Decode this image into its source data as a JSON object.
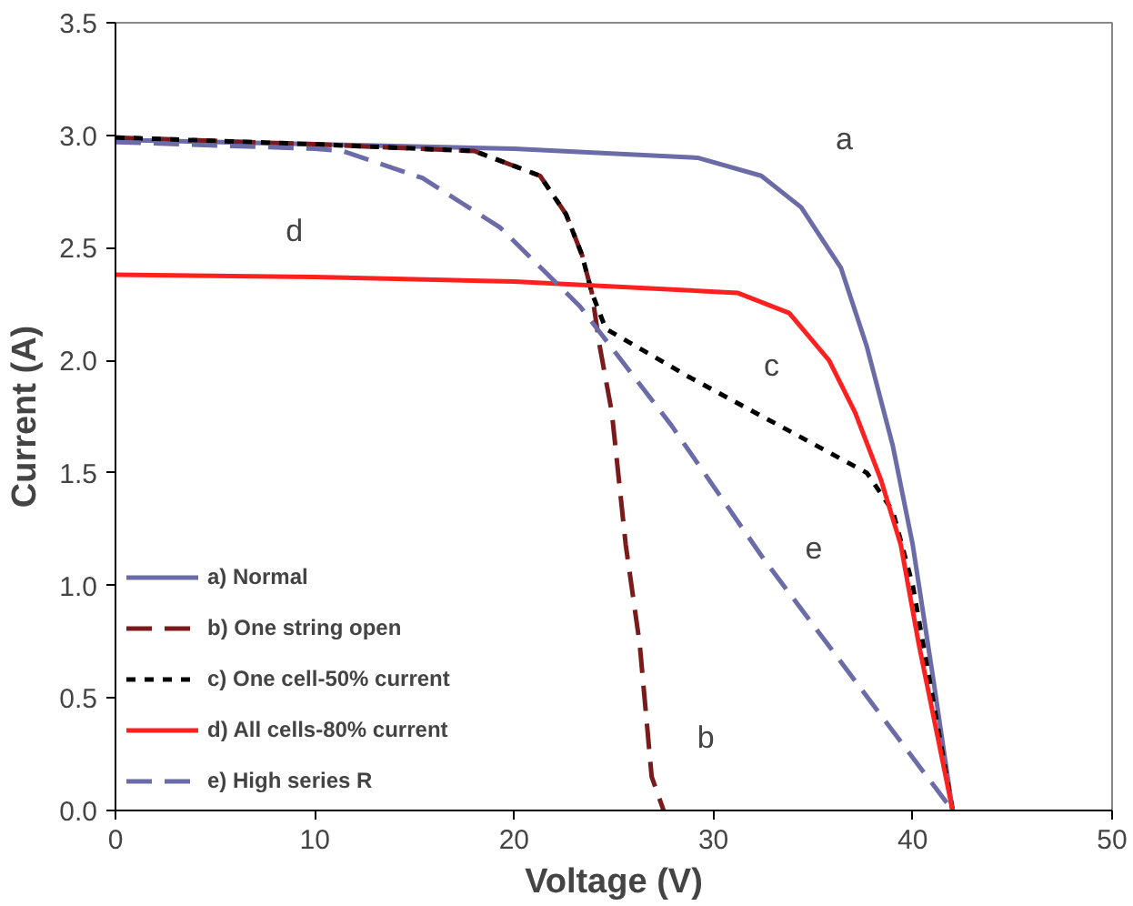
{
  "chart_data": {
    "type": "line",
    "xlabel": "Voltage (V)",
    "ylabel": "Current (A)",
    "xlim": [
      0,
      50
    ],
    "xticks": [
      0,
      10,
      20,
      30,
      40,
      50
    ],
    "ylim": [
      0,
      3.5
    ],
    "yticks": [
      {
        "value": 0,
        "label": "0.0"
      },
      0.5,
      {
        "value": 1,
        "label": "1.0"
      },
      1.5,
      {
        "value": 2,
        "label": "2.0"
      },
      2.5,
      {
        "value": 3,
        "label": "3.0"
      },
      3.5
    ],
    "grid": false,
    "legend": "bottom left",
    "marker": "none",
    "series": [
      {
        "name": "a) Normal",
        "color": "#6b6ba8",
        "line_style": "solid",
        "x": [
          0,
          10,
          20,
          29.2,
          32.4,
          34.4,
          36.4,
          37.7,
          39.0,
          40.0,
          41.0,
          42
        ],
        "values": [
          2.98,
          2.96,
          2.94,
          2.9,
          2.82,
          2.68,
          2.41,
          2.06,
          1.62,
          1.18,
          0.6,
          0
        ]
      },
      {
        "name": "b) One string open",
        "color": "#7b1a1a",
        "line_style": "dashed",
        "x": [
          0,
          10,
          18,
          21.3,
          22.6,
          23.4,
          23.9,
          24.3,
          24.9,
          25.6,
          26.3,
          26.9,
          27.5
        ],
        "values": [
          2.99,
          2.96,
          2.93,
          2.82,
          2.65,
          2.47,
          2.3,
          2.06,
          1.77,
          1.18,
          0.74,
          0.15,
          0
        ]
      },
      {
        "name": "c) One cell-50% current",
        "color": "#000000",
        "line_style": "dotted",
        "x": [
          0,
          10,
          18,
          21.3,
          22.6,
          23.4,
          23.9,
          24.6,
          28.7,
          37.7,
          39.0,
          40.0,
          41.0,
          42
        ],
        "values": [
          2.99,
          2.96,
          2.93,
          2.82,
          2.65,
          2.47,
          2.3,
          2.14,
          1.93,
          1.5,
          1.33,
          1.0,
          0.5,
          0
        ]
      },
      {
        "name": "d) All cells-80% current",
        "color": "#ff2020",
        "line_style": "solid",
        "x": [
          0,
          10,
          20,
          31.2,
          33.8,
          35.8,
          37.1,
          38.4,
          39.4,
          40.3,
          42
        ],
        "values": [
          2.38,
          2.37,
          2.35,
          2.3,
          2.21,
          2.0,
          1.77,
          1.47,
          1.18,
          0.74,
          0
        ]
      },
      {
        "name": "e) High series R",
        "color": "#6b6ba8",
        "line_style": "dashed",
        "x": [
          0,
          10,
          11.4,
          15.4,
          19.3,
          23.3,
          27.9,
          32.5,
          39.7,
          42
        ],
        "values": [
          2.97,
          2.94,
          2.93,
          2.81,
          2.59,
          2.24,
          1.71,
          1.12,
          0.27,
          0
        ]
      }
    ],
    "annotations": [
      "a",
      "b",
      "c",
      "d",
      "e"
    ]
  }
}
